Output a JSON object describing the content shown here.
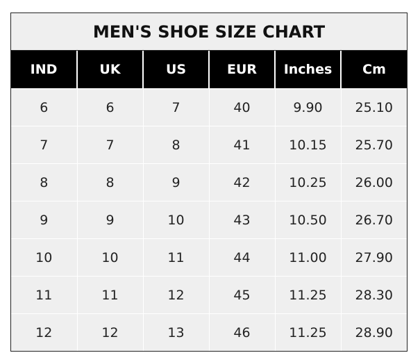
{
  "chart_data": {
    "type": "table",
    "title": "MEN'S SHOE SIZE CHART",
    "columns": [
      "IND",
      "UK",
      "US",
      "EUR",
      "Inches",
      "Cm"
    ],
    "rows": [
      [
        "6",
        "6",
        "7",
        "40",
        "9.90",
        "25.10"
      ],
      [
        "7",
        "7",
        "8",
        "41",
        "10.15",
        "25.70"
      ],
      [
        "8",
        "8",
        "9",
        "42",
        "10.25",
        "26.00"
      ],
      [
        "9",
        "9",
        "10",
        "43",
        "10.50",
        "26.70"
      ],
      [
        "10",
        "10",
        "11",
        "44",
        "11.00",
        "27.90"
      ],
      [
        "11",
        "11",
        "12",
        "45",
        "11.25",
        "28.30"
      ],
      [
        "12",
        "12",
        "13",
        "46",
        "11.25",
        "28.90"
      ]
    ],
    "colors": {
      "header_bg": "#000000",
      "header_text": "#ffffff",
      "cell_bg": "#efefef"
    }
  }
}
